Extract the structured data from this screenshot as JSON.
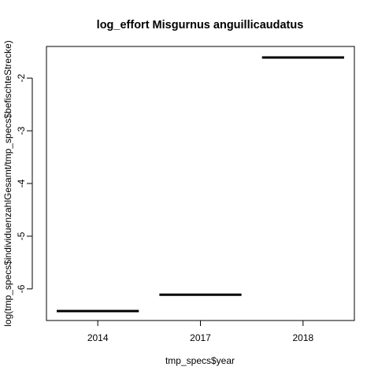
{
  "chart_data": {
    "type": "boxplot",
    "title": "log_effort Misgurnus anguillicaudatus",
    "xlabel": "tmp_specs$year",
    "ylabel": "log(tmp_specs$individuenzahlGesamt/tmp_specs$befischteStrecke)",
    "categories": [
      "2014",
      "2017",
      "2018"
    ],
    "values": [
      -6.42,
      -6.11,
      -1.61
    ],
    "ylim": [
      -6.6,
      -1.4
    ],
    "yticks": [
      -6,
      -5,
      -4,
      -3,
      -2
    ],
    "ytick_labels": [
      "-6",
      "-5",
      "-4",
      "-3",
      "-2"
    ],
    "grid": false,
    "colors": {
      "line": "#000000",
      "axis": "#000000"
    }
  }
}
